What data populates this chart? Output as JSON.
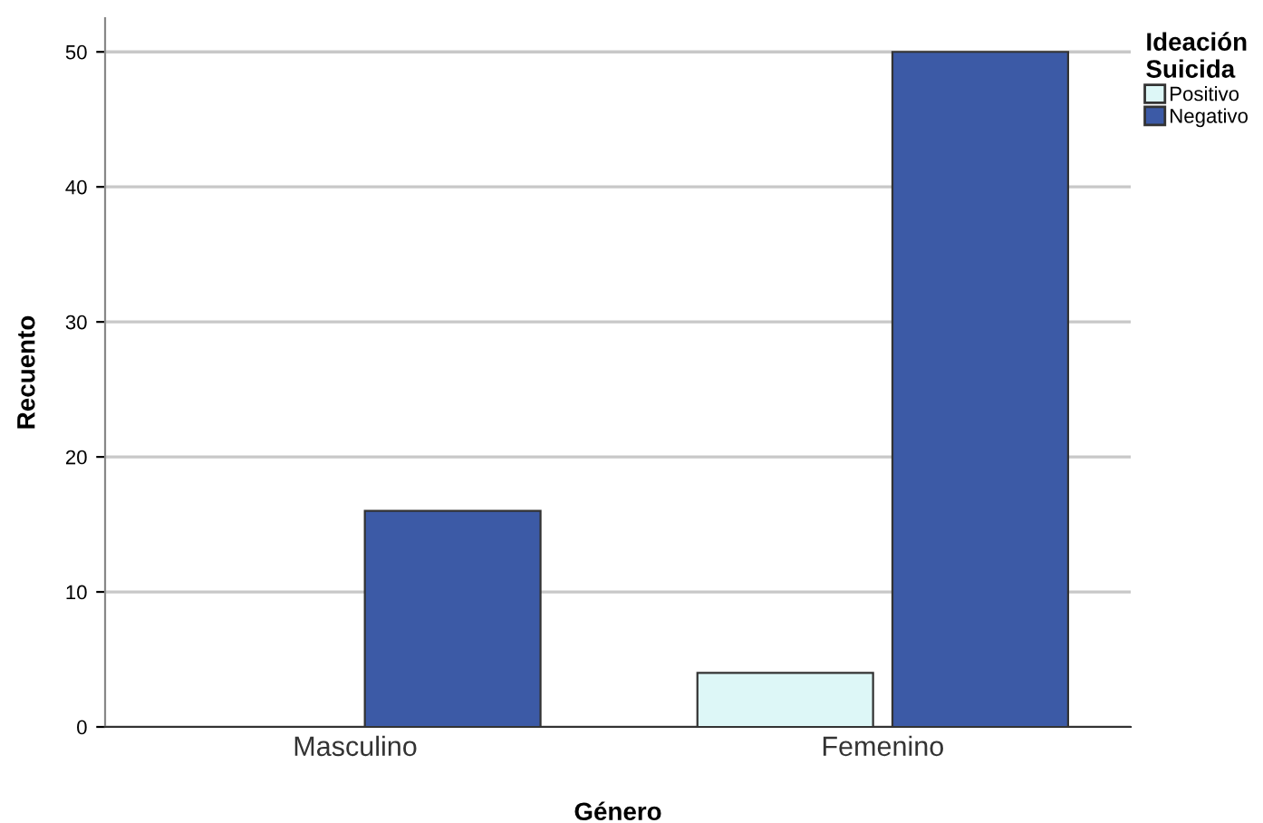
{
  "chart_data": {
    "type": "bar",
    "xlabel": "Género",
    "ylabel": "Recuento",
    "legend_title": "Ideación\nSuicida",
    "categories": [
      "Masculino",
      "Femenino"
    ],
    "series": [
      {
        "name": "Positivo",
        "color": "#ddf7f7",
        "values": [
          0,
          4
        ]
      },
      {
        "name": "Negativo",
        "color": "#3c5aa6",
        "values": [
          16,
          50
        ]
      }
    ],
    "ylim": [
      0,
      52.5
    ],
    "yticks": [
      0,
      10,
      20,
      30,
      40,
      50
    ],
    "grid": "y",
    "legend": "top right"
  }
}
